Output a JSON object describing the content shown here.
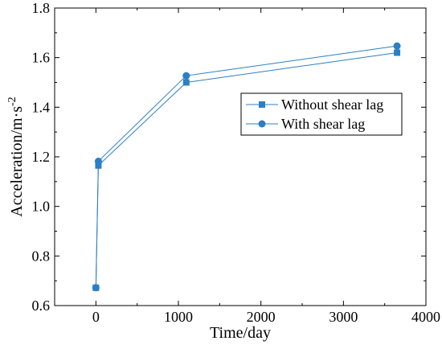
{
  "chart_data": {
    "type": "line",
    "title": "",
    "xlabel": "Time/day",
    "ylabel": "Acceleration/m·s",
    "ylabel_superscript": "-2",
    "xlim": [
      -500,
      4000
    ],
    "ylim": [
      0.6,
      1.8
    ],
    "xticks": [
      0,
      1000,
      2000,
      3000,
      4000
    ],
    "yticks": [
      0.6,
      0.8,
      1.0,
      1.2,
      1.4,
      1.6,
      1.8
    ],
    "xtick_labels": [
      "0",
      "1000",
      "2000",
      "3000",
      "4000"
    ],
    "ytick_labels": [
      "0.6",
      "0.8",
      "1.0",
      "1.2",
      "1.4",
      "1.6",
      "1.8"
    ],
    "legend_position": "center-right",
    "grid": false,
    "series": [
      {
        "name": "Without shear lag",
        "marker": "square",
        "color": "#2b7fc4",
        "x": [
          0,
          30,
          1095,
          3650
        ],
        "y": [
          0.672,
          1.165,
          1.5,
          1.62
        ]
      },
      {
        "name": "With shear lag",
        "marker": "circle",
        "color": "#2b7fc4",
        "x": [
          0,
          30,
          1095,
          3650
        ],
        "y": [
          0.672,
          1.182,
          1.527,
          1.647
        ]
      }
    ]
  }
}
